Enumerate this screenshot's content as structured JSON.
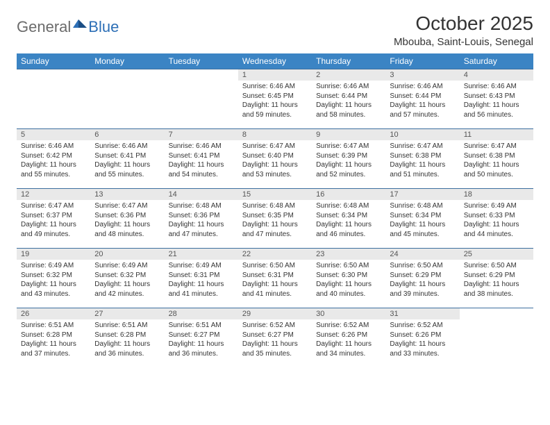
{
  "brand": {
    "general": "General",
    "blue": "Blue"
  },
  "title": "October 2025",
  "location": "Mbouba, Saint-Louis, Senegal",
  "colors": {
    "header_bg": "#3b84c4",
    "header_text": "#ffffff",
    "daynum_bg": "#e9e9e9",
    "row_border": "#3b6e9e",
    "logo_gray": "#6b6b6b",
    "logo_blue": "#2d6fb6"
  },
  "day_labels": [
    "Sunday",
    "Monday",
    "Tuesday",
    "Wednesday",
    "Thursday",
    "Friday",
    "Saturday"
  ],
  "weeks": [
    [
      {
        "n": "",
        "sr": "",
        "ss": "",
        "dl": ""
      },
      {
        "n": "",
        "sr": "",
        "ss": "",
        "dl": ""
      },
      {
        "n": "",
        "sr": "",
        "ss": "",
        "dl": ""
      },
      {
        "n": "1",
        "sr": "Sunrise: 6:46 AM",
        "ss": "Sunset: 6:45 PM",
        "dl": "Daylight: 11 hours and 59 minutes."
      },
      {
        "n": "2",
        "sr": "Sunrise: 6:46 AM",
        "ss": "Sunset: 6:44 PM",
        "dl": "Daylight: 11 hours and 58 minutes."
      },
      {
        "n": "3",
        "sr": "Sunrise: 6:46 AM",
        "ss": "Sunset: 6:44 PM",
        "dl": "Daylight: 11 hours and 57 minutes."
      },
      {
        "n": "4",
        "sr": "Sunrise: 6:46 AM",
        "ss": "Sunset: 6:43 PM",
        "dl": "Daylight: 11 hours and 56 minutes."
      }
    ],
    [
      {
        "n": "5",
        "sr": "Sunrise: 6:46 AM",
        "ss": "Sunset: 6:42 PM",
        "dl": "Daylight: 11 hours and 55 minutes."
      },
      {
        "n": "6",
        "sr": "Sunrise: 6:46 AM",
        "ss": "Sunset: 6:41 PM",
        "dl": "Daylight: 11 hours and 55 minutes."
      },
      {
        "n": "7",
        "sr": "Sunrise: 6:46 AM",
        "ss": "Sunset: 6:41 PM",
        "dl": "Daylight: 11 hours and 54 minutes."
      },
      {
        "n": "8",
        "sr": "Sunrise: 6:47 AM",
        "ss": "Sunset: 6:40 PM",
        "dl": "Daylight: 11 hours and 53 minutes."
      },
      {
        "n": "9",
        "sr": "Sunrise: 6:47 AM",
        "ss": "Sunset: 6:39 PM",
        "dl": "Daylight: 11 hours and 52 minutes."
      },
      {
        "n": "10",
        "sr": "Sunrise: 6:47 AM",
        "ss": "Sunset: 6:38 PM",
        "dl": "Daylight: 11 hours and 51 minutes."
      },
      {
        "n": "11",
        "sr": "Sunrise: 6:47 AM",
        "ss": "Sunset: 6:38 PM",
        "dl": "Daylight: 11 hours and 50 minutes."
      }
    ],
    [
      {
        "n": "12",
        "sr": "Sunrise: 6:47 AM",
        "ss": "Sunset: 6:37 PM",
        "dl": "Daylight: 11 hours and 49 minutes."
      },
      {
        "n": "13",
        "sr": "Sunrise: 6:47 AM",
        "ss": "Sunset: 6:36 PM",
        "dl": "Daylight: 11 hours and 48 minutes."
      },
      {
        "n": "14",
        "sr": "Sunrise: 6:48 AM",
        "ss": "Sunset: 6:36 PM",
        "dl": "Daylight: 11 hours and 47 minutes."
      },
      {
        "n": "15",
        "sr": "Sunrise: 6:48 AM",
        "ss": "Sunset: 6:35 PM",
        "dl": "Daylight: 11 hours and 47 minutes."
      },
      {
        "n": "16",
        "sr": "Sunrise: 6:48 AM",
        "ss": "Sunset: 6:34 PM",
        "dl": "Daylight: 11 hours and 46 minutes."
      },
      {
        "n": "17",
        "sr": "Sunrise: 6:48 AM",
        "ss": "Sunset: 6:34 PM",
        "dl": "Daylight: 11 hours and 45 minutes."
      },
      {
        "n": "18",
        "sr": "Sunrise: 6:49 AM",
        "ss": "Sunset: 6:33 PM",
        "dl": "Daylight: 11 hours and 44 minutes."
      }
    ],
    [
      {
        "n": "19",
        "sr": "Sunrise: 6:49 AM",
        "ss": "Sunset: 6:32 PM",
        "dl": "Daylight: 11 hours and 43 minutes."
      },
      {
        "n": "20",
        "sr": "Sunrise: 6:49 AM",
        "ss": "Sunset: 6:32 PM",
        "dl": "Daylight: 11 hours and 42 minutes."
      },
      {
        "n": "21",
        "sr": "Sunrise: 6:49 AM",
        "ss": "Sunset: 6:31 PM",
        "dl": "Daylight: 11 hours and 41 minutes."
      },
      {
        "n": "22",
        "sr": "Sunrise: 6:50 AM",
        "ss": "Sunset: 6:31 PM",
        "dl": "Daylight: 11 hours and 41 minutes."
      },
      {
        "n": "23",
        "sr": "Sunrise: 6:50 AM",
        "ss": "Sunset: 6:30 PM",
        "dl": "Daylight: 11 hours and 40 minutes."
      },
      {
        "n": "24",
        "sr": "Sunrise: 6:50 AM",
        "ss": "Sunset: 6:29 PM",
        "dl": "Daylight: 11 hours and 39 minutes."
      },
      {
        "n": "25",
        "sr": "Sunrise: 6:50 AM",
        "ss": "Sunset: 6:29 PM",
        "dl": "Daylight: 11 hours and 38 minutes."
      }
    ],
    [
      {
        "n": "26",
        "sr": "Sunrise: 6:51 AM",
        "ss": "Sunset: 6:28 PM",
        "dl": "Daylight: 11 hours and 37 minutes."
      },
      {
        "n": "27",
        "sr": "Sunrise: 6:51 AM",
        "ss": "Sunset: 6:28 PM",
        "dl": "Daylight: 11 hours and 36 minutes."
      },
      {
        "n": "28",
        "sr": "Sunrise: 6:51 AM",
        "ss": "Sunset: 6:27 PM",
        "dl": "Daylight: 11 hours and 36 minutes."
      },
      {
        "n": "29",
        "sr": "Sunrise: 6:52 AM",
        "ss": "Sunset: 6:27 PM",
        "dl": "Daylight: 11 hours and 35 minutes."
      },
      {
        "n": "30",
        "sr": "Sunrise: 6:52 AM",
        "ss": "Sunset: 6:26 PM",
        "dl": "Daylight: 11 hours and 34 minutes."
      },
      {
        "n": "31",
        "sr": "Sunrise: 6:52 AM",
        "ss": "Sunset: 6:26 PM",
        "dl": "Daylight: 11 hours and 33 minutes."
      },
      {
        "n": "",
        "sr": "",
        "ss": "",
        "dl": ""
      }
    ]
  ]
}
